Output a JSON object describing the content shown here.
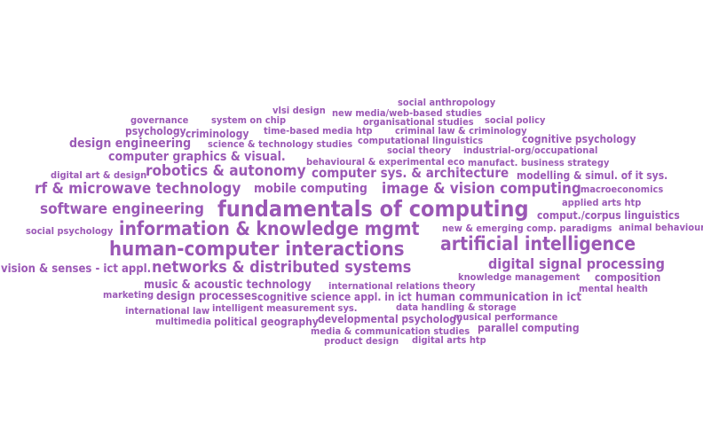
{
  "word_cloud": {
    "color": "#9b59b6",
    "words": [
      {
        "text": "social anthropology"
      },
      {
        "text": "vlsi design"
      },
      {
        "text": "new media/web-based studies"
      },
      {
        "text": "governance"
      },
      {
        "text": "system on chip"
      },
      {
        "text": "organisational studies"
      },
      {
        "text": "social policy"
      },
      {
        "text": "psychology"
      },
      {
        "text": "criminology"
      },
      {
        "text": "time-based media htp"
      },
      {
        "text": "criminal law & criminology"
      },
      {
        "text": "computational linguistics"
      },
      {
        "text": "cognitive psychology"
      },
      {
        "text": "design engineering"
      },
      {
        "text": "science & technology studies"
      },
      {
        "text": "social theory"
      },
      {
        "text": "industrial-org/occupational"
      },
      {
        "text": "computer graphics & visual."
      },
      {
        "text": "behavioural & experimental eco"
      },
      {
        "text": "manufact. business strategy"
      },
      {
        "text": "digital art & design"
      },
      {
        "text": "robotics & autonomy"
      },
      {
        "text": "computer sys. & architecture"
      },
      {
        "text": "modelling & simul. of it sys."
      },
      {
        "text": "rf & microwave technology"
      },
      {
        "text": "mobile computing"
      },
      {
        "text": "image & vision computing"
      },
      {
        "text": "macroeconomics"
      },
      {
        "text": "applied arts htp"
      },
      {
        "text": "software engineering"
      },
      {
        "text": "fundamentals of computing"
      },
      {
        "text": "comput./corpus linguistics"
      },
      {
        "text": "social psychology"
      },
      {
        "text": "information & knowledge mgmt"
      },
      {
        "text": "new & emerging comp. paradigms"
      },
      {
        "text": "animal behaviour"
      },
      {
        "text": "human-computer interactions"
      },
      {
        "text": "artificial intelligence"
      },
      {
        "text": "digital signal processing"
      },
      {
        "text": "vision & senses - ict appl."
      },
      {
        "text": "networks & distributed systems"
      },
      {
        "text": "knowledge management"
      },
      {
        "text": "composition"
      },
      {
        "text": "music & acoustic technology"
      },
      {
        "text": "international relations theory"
      },
      {
        "text": "mental health"
      },
      {
        "text": "marketing"
      },
      {
        "text": "design processes"
      },
      {
        "text": "cognitive science appl. in ict"
      },
      {
        "text": "human communication in ict"
      },
      {
        "text": "international law"
      },
      {
        "text": "intelligent measurement sys."
      },
      {
        "text": "data handling & storage"
      },
      {
        "text": "multimedia"
      },
      {
        "text": "political geography"
      },
      {
        "text": "developmental psychology"
      },
      {
        "text": "musical performance"
      },
      {
        "text": "media & communication studies"
      },
      {
        "text": "parallel computing"
      },
      {
        "text": "product design"
      },
      {
        "text": "digital arts htp"
      }
    ]
  }
}
